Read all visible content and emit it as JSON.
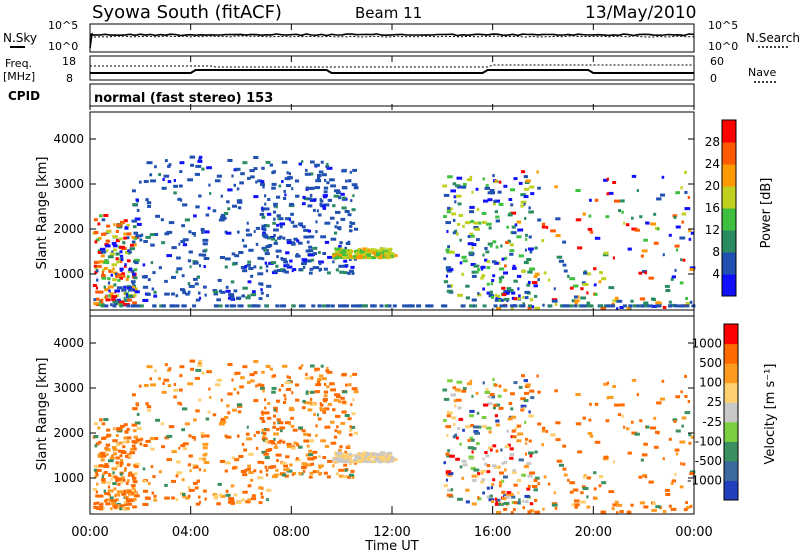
{
  "header": {
    "station": "Syowa South (fitACF)",
    "beam": "Beam 11",
    "date": "13/May/2010"
  },
  "strips": {
    "nsky_label": "N.Sky",
    "nsearch_label": "N.Search",
    "freq_label": "Freq.",
    "freq_unit": "[MHz]",
    "nave_label": "Nave",
    "cpid_label": "CPID",
    "cpid_text": "normal (fast stereo) 153",
    "noise_ticks_left": [
      "10^5",
      "10^0"
    ],
    "noise_ticks_right": [
      "10^5",
      "10^0"
    ],
    "freq_ticks": [
      "18",
      "8"
    ],
    "nave_ticks": [
      "60",
      "0"
    ]
  },
  "chart_data": [
    {
      "type": "heatmap",
      "panel": "power",
      "ylabel": "Slant Range [km]",
      "xlabel": "",
      "yticks": [
        "1000",
        "2000",
        "3000",
        "4000"
      ],
      "ylim": [
        200,
        4600
      ],
      "xlim": [
        0,
        24
      ],
      "colorbar": {
        "label": "Power [dB]",
        "ticks": [
          "4",
          "8",
          "12",
          "16",
          "20",
          "24",
          "28"
        ],
        "colors": [
          "#1010ff",
          "#2050b0",
          "#2a8a60",
          "#3fbf3f",
          "#bfd020",
          "#ff9900",
          "#ff5a00",
          "#ff0000"
        ]
      },
      "echo_regions": [
        {
          "t": [
            0.1,
            1.8
          ],
          "r": [
            300,
            2300
          ],
          "level": "mixed-strong"
        },
        {
          "t": [
            1.5,
            7.0
          ],
          "r": [
            400,
            3600
          ],
          "level": "weak"
        },
        {
          "t": [
            6.8,
            10.5
          ],
          "r": [
            1000,
            3500
          ],
          "level": "weak"
        },
        {
          "t": [
            9.6,
            12.0
          ],
          "r": [
            1350,
            1550
          ],
          "level": "moderate"
        },
        {
          "t": [
            14.0,
            17.5
          ],
          "r": [
            400,
            3200
          ],
          "level": "mixed"
        },
        {
          "t": [
            16.0,
            24.0
          ],
          "r": [
            200,
            3300
          ],
          "level": "mixed-strong"
        }
      ]
    },
    {
      "type": "heatmap",
      "panel": "velocity",
      "ylabel": "Slant Range [km]",
      "xlabel": "Time UT",
      "xticks": [
        "00:00",
        "04:00",
        "08:00",
        "12:00",
        "16:00",
        "20:00",
        "00:00"
      ],
      "yticks": [
        "1000",
        "2000",
        "3000",
        "4000"
      ],
      "ylim": [
        200,
        4600
      ],
      "xlim": [
        0,
        24
      ],
      "colorbar": {
        "label": "Velocity [m s⁻¹]",
        "ticks": [
          "1000",
          "500",
          "100",
          "25",
          "-25",
          "-100",
          "-500",
          "-1000"
        ],
        "colors": [
          "#2040c0",
          "#3a6aa0",
          "#3a9060",
          "#7ccf40",
          "#c8c8c8",
          "#ffd070",
          "#ff9a20",
          "#ff6a00",
          "#ff0000"
        ]
      },
      "echo_regions": [
        {
          "t": [
            0.1,
            1.8
          ],
          "r": [
            300,
            2300
          ],
          "level": "mixed"
        },
        {
          "t": [
            1.5,
            7.0
          ],
          "r": [
            400,
            3600
          ],
          "level": "away"
        },
        {
          "t": [
            9.6,
            12.0
          ],
          "r": [
            1350,
            1550
          ],
          "level": "slow"
        },
        {
          "t": [
            16.0,
            24.0
          ],
          "r": [
            200,
            3300
          ],
          "level": "away"
        }
      ]
    }
  ]
}
